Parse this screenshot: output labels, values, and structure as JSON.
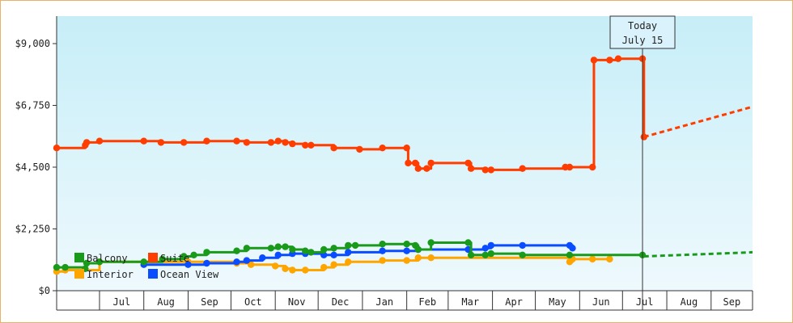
{
  "chart_data": {
    "type": "line",
    "title": "",
    "xlabel": "",
    "ylabel": "",
    "step": true,
    "grid": false,
    "legend_position": "bottom-left",
    "x_axis_type": "date",
    "x_range": [
      "2023-06-01",
      "2024-09-30"
    ],
    "ylim": [
      0,
      10000
    ],
    "x_tick_labels": [
      {
        "label": "Jul",
        "date": "2023-07-01"
      },
      {
        "label": "Aug",
        "date": "2023-08-01"
      },
      {
        "label": "Sep",
        "date": "2023-09-01"
      },
      {
        "label": "Oct",
        "date": "2023-10-01"
      },
      {
        "label": "Nov",
        "date": "2023-11-01"
      },
      {
        "label": "Dec",
        "date": "2023-12-01"
      },
      {
        "label": "Jan",
        "date": "2024-01-01"
      },
      {
        "label": "Feb",
        "date": "2024-02-01"
      },
      {
        "label": "Mar",
        "date": "2024-03-01"
      },
      {
        "label": "Apr",
        "date": "2024-04-01"
      },
      {
        "label": "May",
        "date": "2024-05-01"
      },
      {
        "label": "Jun",
        "date": "2024-06-01"
      },
      {
        "label": "Jul",
        "date": "2024-07-01"
      },
      {
        "label": "Aug",
        "date": "2024-08-01"
      },
      {
        "label": "Sep",
        "date": "2024-09-01"
      }
    ],
    "y_ticks": [
      {
        "label": "$0",
        "value": 0
      },
      {
        "label": "$2,250",
        "value": 2250
      },
      {
        "label": "$4,500",
        "value": 4500
      },
      {
        "label": "$6,750",
        "value": 6750
      },
      {
        "label": "$9,000",
        "value": 9000
      }
    ],
    "annotation": {
      "line1": "Today",
      "line2": "July 15",
      "date": "2024-07-15"
    },
    "series": [
      {
        "name": "Suite",
        "color": "#ff3d00",
        "points": [
          [
            "2023-06-01",
            5200
          ],
          [
            "2023-06-21",
            5300
          ],
          [
            "2023-06-22",
            5400
          ],
          [
            "2023-07-01",
            5450
          ],
          [
            "2023-08-01",
            5450
          ],
          [
            "2023-08-13",
            5400
          ],
          [
            "2023-08-29",
            5400
          ],
          [
            "2023-09-14",
            5450
          ],
          [
            "2023-10-05",
            5450
          ],
          [
            "2023-10-12",
            5400
          ],
          [
            "2023-10-29",
            5400
          ],
          [
            "2023-11-03",
            5450
          ],
          [
            "2023-11-08",
            5400
          ],
          [
            "2023-11-13",
            5350
          ],
          [
            "2023-11-22",
            5300
          ],
          [
            "2023-11-26",
            5300
          ],
          [
            "2023-12-12",
            5200
          ],
          [
            "2023-12-30",
            5150
          ],
          [
            "2024-01-15",
            5200
          ],
          [
            "2024-02-01",
            5200
          ],
          [
            "2024-02-02",
            4650
          ],
          [
            "2024-02-07",
            4650
          ],
          [
            "2024-02-09",
            4450
          ],
          [
            "2024-02-15",
            4450
          ],
          [
            "2024-02-18",
            4650
          ],
          [
            "2024-03-15",
            4650
          ],
          [
            "2024-03-17",
            4450
          ],
          [
            "2024-03-27",
            4400
          ],
          [
            "2024-03-31",
            4400
          ],
          [
            "2024-04-22",
            4450
          ],
          [
            "2024-05-22",
            4500
          ],
          [
            "2024-05-25",
            4500
          ],
          [
            "2024-06-10",
            4500
          ],
          [
            "2024-06-11",
            8400
          ],
          [
            "2024-06-22",
            8400
          ],
          [
            "2024-06-28",
            8450
          ],
          [
            "2024-07-15",
            8450
          ],
          [
            "2024-07-16",
            5600
          ]
        ],
        "forecast": [
          [
            "2024-07-16",
            5600
          ],
          [
            "2024-09-30",
            6700
          ]
        ]
      },
      {
        "name": "Balcony",
        "color": "#1a9a1a",
        "points": [
          [
            "2023-06-01",
            850
          ],
          [
            "2023-06-07",
            850
          ],
          [
            "2023-06-21",
            800
          ],
          [
            "2023-06-22",
            1000
          ],
          [
            "2023-07-01",
            1050
          ],
          [
            "2023-08-01",
            1050
          ],
          [
            "2023-08-14",
            1150
          ],
          [
            "2023-08-29",
            1250
          ],
          [
            "2023-09-05",
            1300
          ],
          [
            "2023-09-14",
            1400
          ],
          [
            "2023-10-05",
            1450
          ],
          [
            "2023-10-12",
            1550
          ],
          [
            "2023-10-29",
            1550
          ],
          [
            "2023-11-03",
            1600
          ],
          [
            "2023-11-08",
            1600
          ],
          [
            "2023-11-13",
            1500
          ],
          [
            "2023-11-22",
            1450
          ],
          [
            "2023-11-26",
            1400
          ],
          [
            "2023-12-05",
            1500
          ],
          [
            "2023-12-12",
            1550
          ],
          [
            "2023-12-22",
            1650
          ],
          [
            "2023-12-27",
            1650
          ],
          [
            "2024-01-15",
            1700
          ],
          [
            "2024-02-01",
            1700
          ],
          [
            "2024-02-07",
            1650
          ],
          [
            "2024-02-09",
            1500
          ],
          [
            "2024-02-18",
            1750
          ],
          [
            "2024-03-15",
            1750
          ],
          [
            "2024-03-17",
            1300
          ],
          [
            "2024-03-27",
            1300
          ],
          [
            "2024-03-31",
            1350
          ],
          [
            "2024-04-22",
            1300
          ],
          [
            "2024-05-25",
            1300
          ],
          [
            "2024-07-15",
            1300
          ]
        ],
        "forecast": [
          [
            "2024-07-16",
            1250
          ],
          [
            "2024-09-30",
            1400
          ]
        ]
      },
      {
        "name": "Interior",
        "color": "#ffa500",
        "points": [
          [
            "2023-06-01",
            700
          ],
          [
            "2023-06-07",
            750
          ],
          [
            "2023-07-01",
            1050
          ],
          [
            "2023-09-01",
            1050
          ],
          [
            "2023-10-05",
            1000
          ],
          [
            "2023-10-15",
            950
          ],
          [
            "2023-11-01",
            900
          ],
          [
            "2023-11-08",
            800
          ],
          [
            "2023-11-13",
            750
          ],
          [
            "2023-11-22",
            750
          ],
          [
            "2023-12-05",
            850
          ],
          [
            "2023-12-12",
            950
          ],
          [
            "2023-12-22",
            1050
          ],
          [
            "2024-01-15",
            1100
          ],
          [
            "2024-02-01",
            1100
          ],
          [
            "2024-02-09",
            1200
          ],
          [
            "2024-02-18",
            1200
          ],
          [
            "2024-05-25",
            1050
          ],
          [
            "2024-05-27",
            1150
          ],
          [
            "2024-06-10",
            1150
          ],
          [
            "2024-06-22",
            1150
          ]
        ]
      },
      {
        "name": "Ocean View",
        "color": "#0a4cff",
        "points": [
          [
            "2023-08-01",
            950
          ],
          [
            "2023-09-01",
            950
          ],
          [
            "2023-09-14",
            1000
          ],
          [
            "2023-10-05",
            1050
          ],
          [
            "2023-10-12",
            1100
          ],
          [
            "2023-10-23",
            1200
          ],
          [
            "2023-11-03",
            1300
          ],
          [
            "2023-11-13",
            1350
          ],
          [
            "2023-11-22",
            1350
          ],
          [
            "2023-12-05",
            1300
          ],
          [
            "2023-12-12",
            1300
          ],
          [
            "2023-12-22",
            1400
          ],
          [
            "2024-01-15",
            1450
          ],
          [
            "2024-02-01",
            1450
          ],
          [
            "2024-02-09",
            1500
          ],
          [
            "2024-03-15",
            1500
          ],
          [
            "2024-03-27",
            1550
          ],
          [
            "2024-03-31",
            1650
          ],
          [
            "2024-04-22",
            1650
          ],
          [
            "2024-05-25",
            1650
          ],
          [
            "2024-05-27",
            1550
          ]
        ]
      }
    ],
    "legend": [
      "Balcony",
      "Suite",
      "Interior",
      "Ocean View"
    ]
  },
  "colors": {
    "plot_top": "#c7eef8",
    "plot_bottom": "#eef9fd",
    "frame_border": "#e8b26a",
    "axis": "#333333",
    "callout_bg": "#d9f2fb"
  }
}
